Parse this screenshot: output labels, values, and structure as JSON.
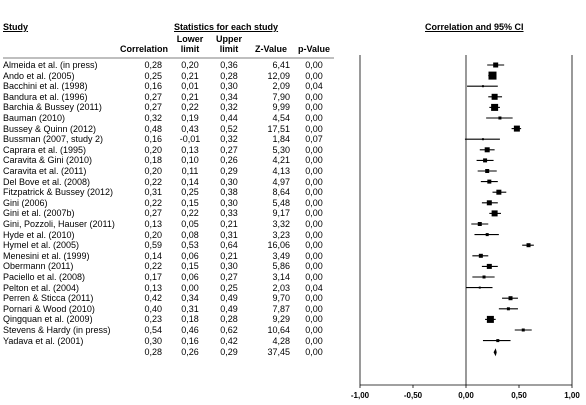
{
  "headers": {
    "study": "Study",
    "stats": "Statistics for each study",
    "ci": "Correlation and 95% CI",
    "correlation": "Correlation",
    "lower": [
      "Lower",
      "limit"
    ],
    "upper": [
      "Upper",
      "limit"
    ],
    "zvalue": "Z-Value",
    "pvalue": "p-Value"
  },
  "rows": [
    {
      "study": "Almeida et al. (in press)",
      "r": "0,28",
      "lo": "0,20",
      "hi": "0,36",
      "z": "6,41",
      "p": "0,00"
    },
    {
      "study": "Ando et al. (2005)",
      "r": "0,25",
      "lo": "0,21",
      "hi": "0,28",
      "z": "12,09",
      "p": "0,00"
    },
    {
      "study": "Bacchini et al. (1998)",
      "r": "0,16",
      "lo": "0,01",
      "hi": "0,30",
      "z": "2,09",
      "p": "0,04"
    },
    {
      "study": "Bandura et al. (1996)",
      "r": "0,27",
      "lo": "0,21",
      "hi": "0,34",
      "z": "7,90",
      "p": "0,00"
    },
    {
      "study": "Barchia & Bussey (2011)",
      "r": "0,27",
      "lo": "0,22",
      "hi": "0,32",
      "z": "9,99",
      "p": "0,00"
    },
    {
      "study": "Bauman (2010)",
      "r": "0,32",
      "lo": "0,19",
      "hi": "0,44",
      "z": "4,54",
      "p": "0,00"
    },
    {
      "study": "Bussey & Quinn (2012)",
      "r": "0,48",
      "lo": "0,43",
      "hi": "0,52",
      "z": "17,51",
      "p": "0,00"
    },
    {
      "study": "Bussman (2007, study 2)",
      "r": "0,16",
      "lo": "-0,01",
      "hi": "0,32",
      "z": "1,84",
      "p": "0,07"
    },
    {
      "study": "Caprara et al. (1995)",
      "r": "0,20",
      "lo": "0,13",
      "hi": "0,27",
      "z": "5,30",
      "p": "0,00"
    },
    {
      "study": "Caravita & Gini (2010)",
      "r": "0,18",
      "lo": "0,10",
      "hi": "0,26",
      "z": "4,21",
      "p": "0,00"
    },
    {
      "study": "Caravita et al. (2011)",
      "r": "0,20",
      "lo": "0,11",
      "hi": "0,29",
      "z": "4,13",
      "p": "0,00"
    },
    {
      "study": "Del Bove et al. (2008)",
      "r": "0,22",
      "lo": "0,14",
      "hi": "0,30",
      "z": "4,97",
      "p": "0,00"
    },
    {
      "study": "Fitzpatrick & Bussey (2012)",
      "r": "0,31",
      "lo": "0,25",
      "hi": "0,38",
      "z": "8,64",
      "p": "0,00"
    },
    {
      "study": "Gini (2006)",
      "r": "0,22",
      "lo": "0,15",
      "hi": "0,30",
      "z": "5,48",
      "p": "0,00"
    },
    {
      "study": "Gini et al. (2007b)",
      "r": "0,27",
      "lo": "0,22",
      "hi": "0,33",
      "z": "9,17",
      "p": "0,00"
    },
    {
      "study": "Gini, Pozzoli, Hauser (2011)",
      "r": "0,13",
      "lo": "0,05",
      "hi": "0,21",
      "z": "3,32",
      "p": "0,00"
    },
    {
      "study": "Hyde et al. (2010)",
      "r": "0,20",
      "lo": "0,08",
      "hi": "0,31",
      "z": "3,23",
      "p": "0,00"
    },
    {
      "study": "Hymel et al. (2005)",
      "r": "0,59",
      "lo": "0,53",
      "hi": "0,64",
      "z": "16,06",
      "p": "0,00"
    },
    {
      "study": "Menesini et al. (1999)",
      "r": "0,14",
      "lo": "0,06",
      "hi": "0,21",
      "z": "3,49",
      "p": "0,00"
    },
    {
      "study": "Obermann (2011)",
      "r": "0,22",
      "lo": "0,15",
      "hi": "0,30",
      "z": "5,86",
      "p": "0,00"
    },
    {
      "study": "Paciello et al. (2008)",
      "r": "0,17",
      "lo": "0,06",
      "hi": "0,27",
      "z": "3,14",
      "p": "0,00"
    },
    {
      "study": "Pelton et al. (2004)",
      "r": "0,13",
      "lo": "0,00",
      "hi": "0,25",
      "z": "2,03",
      "p": "0,04"
    },
    {
      "study": "Perren & Sticca (2011)",
      "r": "0,42",
      "lo": "0,34",
      "hi": "0,49",
      "z": "9,70",
      "p": "0,00"
    },
    {
      "study": "Pornari & Wood (2010)",
      "r": "0,40",
      "lo": "0,31",
      "hi": "0,49",
      "z": "7,87",
      "p": "0,00"
    },
    {
      "study": "Qingquan et al. (2009)",
      "r": "0,23",
      "lo": "0,18",
      "hi": "0,28",
      "z": "9,29",
      "p": "0,00"
    },
    {
      "study": "Stevens & Hardy (in press)",
      "r": "0,54",
      "lo": "0,46",
      "hi": "0,62",
      "z": "10,64",
      "p": "0,00"
    },
    {
      "study": "Yadava et al. (2001)",
      "r": "0,30",
      "lo": "0,16",
      "hi": "0,42",
      "z": "4,28",
      "p": "0,00"
    }
  ],
  "summary": {
    "r": "0,28",
    "lo": "0,26",
    "hi": "0,29",
    "z": "37,45",
    "p": "0,00"
  },
  "chart_data": {
    "type": "scatter",
    "xlim": [
      -1,
      1
    ],
    "xticks": [
      "-1,00",
      "-0,50",
      "0,00",
      "0,50",
      "1,00"
    ],
    "xtick_values": [
      -1,
      -0.5,
      0,
      0.5,
      1
    ],
    "points": [
      {
        "x": 0.28,
        "lo": 0.2,
        "hi": 0.36,
        "w": 5
      },
      {
        "x": 0.25,
        "lo": 0.21,
        "hi": 0.28,
        "w": 8
      },
      {
        "x": 0.16,
        "lo": 0.01,
        "hi": 0.3,
        "w": 2
      },
      {
        "x": 0.27,
        "lo": 0.21,
        "hi": 0.34,
        "w": 6
      },
      {
        "x": 0.27,
        "lo": 0.22,
        "hi": 0.32,
        "w": 7
      },
      {
        "x": 0.32,
        "lo": 0.19,
        "hi": 0.44,
        "w": 3
      },
      {
        "x": 0.48,
        "lo": 0.43,
        "hi": 0.52,
        "w": 6
      },
      {
        "x": 0.16,
        "lo": -0.01,
        "hi": 0.32,
        "w": 2
      },
      {
        "x": 0.2,
        "lo": 0.13,
        "hi": 0.27,
        "w": 5
      },
      {
        "x": 0.18,
        "lo": 0.1,
        "hi": 0.26,
        "w": 4
      },
      {
        "x": 0.2,
        "lo": 0.11,
        "hi": 0.29,
        "w": 4
      },
      {
        "x": 0.22,
        "lo": 0.14,
        "hi": 0.3,
        "w": 4
      },
      {
        "x": 0.31,
        "lo": 0.25,
        "hi": 0.38,
        "w": 5
      },
      {
        "x": 0.22,
        "lo": 0.15,
        "hi": 0.3,
        "w": 5
      },
      {
        "x": 0.27,
        "lo": 0.22,
        "hi": 0.33,
        "w": 6
      },
      {
        "x": 0.13,
        "lo": 0.05,
        "hi": 0.21,
        "w": 4
      },
      {
        "x": 0.2,
        "lo": 0.08,
        "hi": 0.31,
        "w": 3
      },
      {
        "x": 0.59,
        "lo": 0.53,
        "hi": 0.64,
        "w": 4
      },
      {
        "x": 0.14,
        "lo": 0.06,
        "hi": 0.21,
        "w": 4
      },
      {
        "x": 0.22,
        "lo": 0.15,
        "hi": 0.3,
        "w": 5
      },
      {
        "x": 0.17,
        "lo": 0.06,
        "hi": 0.27,
        "w": 3
      },
      {
        "x": 0.13,
        "lo": 0.0,
        "hi": 0.25,
        "w": 2
      },
      {
        "x": 0.42,
        "lo": 0.34,
        "hi": 0.49,
        "w": 4
      },
      {
        "x": 0.4,
        "lo": 0.31,
        "hi": 0.49,
        "w": 3
      },
      {
        "x": 0.23,
        "lo": 0.18,
        "hi": 0.28,
        "w": 7
      },
      {
        "x": 0.54,
        "lo": 0.46,
        "hi": 0.62,
        "w": 3
      },
      {
        "x": 0.3,
        "lo": 0.16,
        "hi": 0.42,
        "w": 3
      }
    ],
    "summary": {
      "x": 0.28,
      "lo": 0.26,
      "hi": 0.29
    }
  }
}
